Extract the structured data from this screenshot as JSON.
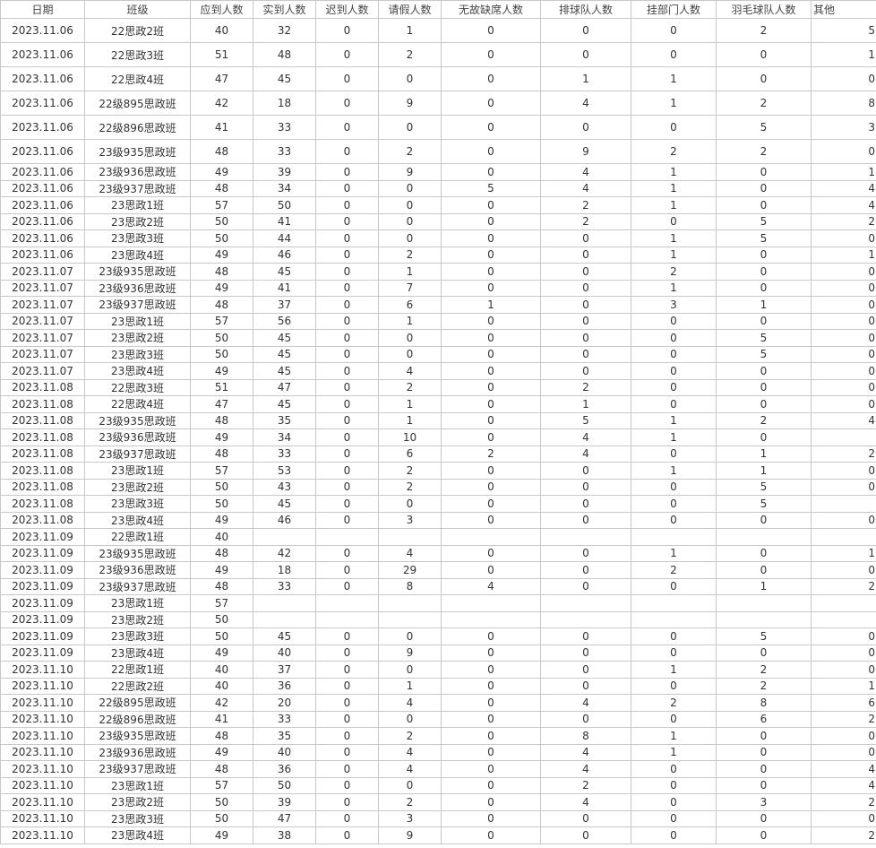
{
  "headers": [
    "日期",
    "班级",
    "应到人数",
    "实到人数",
    "迟到人数",
    "请假人数",
    "无故缺席人数",
    "排球队人数",
    "挂部门人数",
    "羽毛球队人数",
    "其他"
  ],
  "rows": [
    [
      "2023.11.06",
      "22思政2班",
      "40",
      "32",
      "0",
      "1",
      "0",
      "0",
      "0",
      "2",
      "5"
    ],
    [
      "2023.11.06",
      "22思政3班",
      "51",
      "48",
      "0",
      "2",
      "0",
      "0",
      "0",
      "0",
      "1"
    ],
    [
      "2023.11.06",
      "22思政4班",
      "47",
      "45",
      "0",
      "0",
      "0",
      "1",
      "1",
      "0",
      "0"
    ],
    [
      "2023.11.06",
      "22级895思政班",
      "42",
      "18",
      "0",
      "9",
      "0",
      "4",
      "1",
      "2",
      "8"
    ],
    [
      "2023.11.06",
      "22级896思政班",
      "41",
      "33",
      "0",
      "0",
      "0",
      "0",
      "0",
      "5",
      "3"
    ],
    [
      "2023.11.06",
      "23级935思政班",
      "48",
      "33",
      "0",
      "2",
      "0",
      "9",
      "2",
      "2",
      "0"
    ],
    [
      "2023.11.06",
      "23级936思政班",
      "49",
      "39",
      "0",
      "9",
      "0",
      "4",
      "1",
      "0",
      "1"
    ],
    [
      "2023.11.06",
      "23级937思政班",
      "48",
      "34",
      "0",
      "0",
      "5",
      "4",
      "1",
      "0",
      "4"
    ],
    [
      "2023.11.06",
      "23思政1班",
      "57",
      "50",
      "0",
      "0",
      "0",
      "2",
      "1",
      "0",
      "4"
    ],
    [
      "2023.11.06",
      "23思政2班",
      "50",
      "41",
      "0",
      "0",
      "0",
      "2",
      "0",
      "5",
      "2"
    ],
    [
      "2023.11.06",
      "23思政3班",
      "50",
      "44",
      "0",
      "0",
      "0",
      "0",
      "1",
      "5",
      "0"
    ],
    [
      "2023.11.06",
      "23思政4班",
      "49",
      "46",
      "0",
      "2",
      "0",
      "0",
      "1",
      "0",
      "1"
    ],
    [
      "2023.11.07",
      "23级935思政班",
      "48",
      "45",
      "0",
      "1",
      "0",
      "0",
      "2",
      "0",
      "0"
    ],
    [
      "2023.11.07",
      "23级936思政班",
      "49",
      "41",
      "0",
      "7",
      "0",
      "0",
      "1",
      "0",
      "0"
    ],
    [
      "2023.11.07",
      "23级937思政班",
      "48",
      "37",
      "0",
      "6",
      "1",
      "0",
      "3",
      "1",
      "0"
    ],
    [
      "2023.11.07",
      "23思政1班",
      "57",
      "56",
      "0",
      "1",
      "0",
      "0",
      "0",
      "0",
      "0"
    ],
    [
      "2023.11.07",
      "23思政2班",
      "50",
      "45",
      "0",
      "0",
      "0",
      "0",
      "0",
      "5",
      "0"
    ],
    [
      "2023.11.07",
      "23思政3班",
      "50",
      "45",
      "0",
      "0",
      "0",
      "0",
      "0",
      "5",
      "0"
    ],
    [
      "2023.11.07",
      "23思政4班",
      "49",
      "45",
      "0",
      "4",
      "0",
      "0",
      "0",
      "0",
      "0"
    ],
    [
      "2023.11.08",
      "22思政3班",
      "51",
      "47",
      "0",
      "2",
      "0",
      "2",
      "0",
      "0",
      "0"
    ],
    [
      "2023.11.08",
      "22思政4班",
      "47",
      "45",
      "0",
      "1",
      "0",
      "1",
      "0",
      "0",
      "0"
    ],
    [
      "2023.11.08",
      "23级935思政班",
      "48",
      "35",
      "0",
      "1",
      "0",
      "5",
      "1",
      "2",
      "4"
    ],
    [
      "2023.11.08",
      "23级936思政班",
      "49",
      "34",
      "0",
      "10",
      "0",
      "4",
      "1",
      "0",
      ""
    ],
    [
      "2023.11.08",
      "23级937思政班",
      "48",
      "33",
      "0",
      "6",
      "2",
      "4",
      "0",
      "1",
      "2"
    ],
    [
      "2023.11.08",
      "23思政1班",
      "57",
      "53",
      "0",
      "2",
      "0",
      "0",
      "1",
      "1",
      "0"
    ],
    [
      "2023.11.08",
      "23思政2班",
      "50",
      "43",
      "0",
      "2",
      "0",
      "0",
      "0",
      "5",
      "0"
    ],
    [
      "2023.11.08",
      "23思政3班",
      "50",
      "45",
      "0",
      "0",
      "0",
      "0",
      "0",
      "5",
      ""
    ],
    [
      "2023.11.08",
      "23思政4班",
      "49",
      "46",
      "0",
      "3",
      "0",
      "0",
      "0",
      "0",
      "0"
    ],
    [
      "2023.11.09",
      "22思政1班",
      "40",
      "",
      "",
      "",
      "",
      "",
      "",
      "",
      ""
    ],
    [
      "2023.11.09",
      "23级935思政班",
      "48",
      "42",
      "0",
      "4",
      "0",
      "0",
      "1",
      "0",
      "1"
    ],
    [
      "2023.11.09",
      "23级936思政班",
      "49",
      "18",
      "0",
      "29",
      "0",
      "0",
      "2",
      "0",
      "0"
    ],
    [
      "2023.11.09",
      "23级937思政班",
      "48",
      "33",
      "0",
      "8",
      "4",
      "0",
      "0",
      "1",
      "2"
    ],
    [
      "2023.11.09",
      "23思政1班",
      "57",
      "",
      "",
      "",
      "",
      "",
      "",
      "",
      ""
    ],
    [
      "2023.11.09",
      "23思政2班",
      "50",
      "",
      "",
      "",
      "",
      "",
      "",
      "",
      ""
    ],
    [
      "2023.11.09",
      "23思政3班",
      "50",
      "45",
      "0",
      "0",
      "0",
      "0",
      "0",
      "5",
      "0"
    ],
    [
      "2023.11.09",
      "23思政4班",
      "49",
      "40",
      "0",
      "9",
      "0",
      "0",
      "0",
      "0",
      "0"
    ],
    [
      "2023.11.10",
      "22思政1班",
      "40",
      "37",
      "0",
      "0",
      "0",
      "0",
      "1",
      "2",
      "0"
    ],
    [
      "2023.11.10",
      "22思政2班",
      "40",
      "36",
      "0",
      "1",
      "0",
      "0",
      "0",
      "2",
      "1"
    ],
    [
      "2023.11.10",
      "22级895思政班",
      "42",
      "20",
      "0",
      "4",
      "0",
      "4",
      "2",
      "8",
      "6"
    ],
    [
      "2023.11.10",
      "22级896思政班",
      "41",
      "33",
      "0",
      "0",
      "0",
      "0",
      "0",
      "6",
      "2"
    ],
    [
      "2023.11.10",
      "23级935思政班",
      "48",
      "35",
      "0",
      "2",
      "0",
      "8",
      "1",
      "0",
      "0"
    ],
    [
      "2023.11.10",
      "23级936思政班",
      "49",
      "40",
      "0",
      "4",
      "0",
      "4",
      "1",
      "0",
      "0"
    ],
    [
      "2023.11.10",
      "23级937思政班",
      "48",
      "36",
      "0",
      "4",
      "0",
      "4",
      "0",
      "0",
      "4"
    ],
    [
      "2023.11.10",
      "23思政1班",
      "57",
      "50",
      "0",
      "0",
      "0",
      "2",
      "0",
      "0",
      "4"
    ],
    [
      "2023.11.10",
      "23思政2班",
      "50",
      "39",
      "0",
      "2",
      "0",
      "4",
      "0",
      "3",
      "2"
    ],
    [
      "2023.11.10",
      "23思政3班",
      "50",
      "47",
      "0",
      "3",
      "0",
      "0",
      "0",
      "0",
      "0"
    ],
    [
      "2023.11.10",
      "23思政4班",
      "49",
      "38",
      "0",
      "9",
      "0",
      "0",
      "0",
      "0",
      "2"
    ]
  ]
}
